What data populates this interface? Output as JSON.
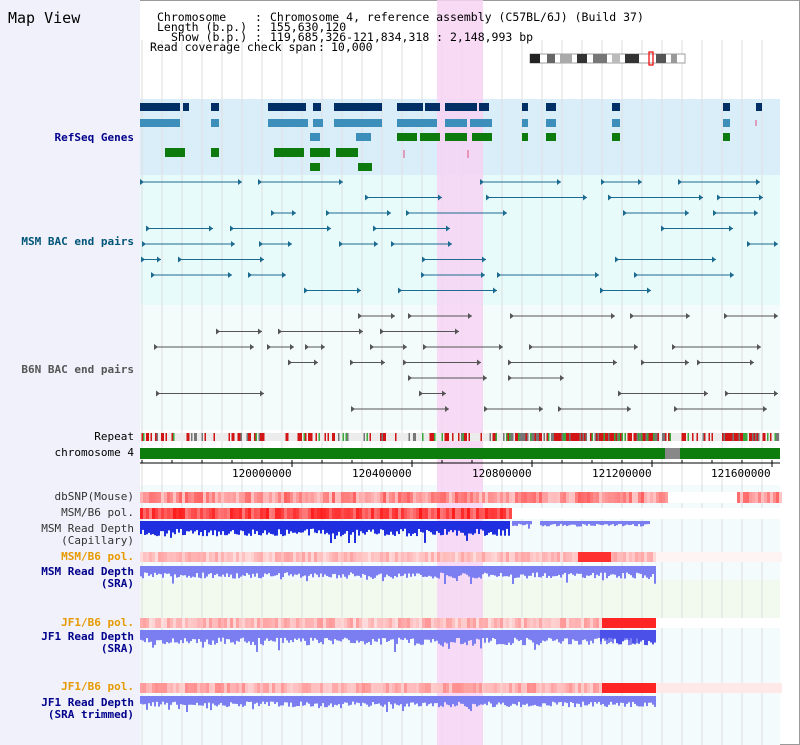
{
  "view_title": "Map View",
  "header": {
    "chromosome_label": "Chromosome",
    "chromosome_value": "Chromosome 4, reference assembly (C57BL/6J) (Build 37)",
    "length_label": "Length (b.p.)",
    "length_value": "155,630,120",
    "show_label": "Show (b.p.)",
    "show_value": "119,685,326-121,834,318 : 2,148,993 bp",
    "coverage_label": "Read coverage check span",
    "coverage_value": "10,000"
  },
  "tracks": {
    "refseq": "RefSeq Genes",
    "msm_bac": "MSM BAC end pairs",
    "b6n_bac": "B6N BAC end pairs",
    "repeat": "Repeat",
    "chromosome": "chromosome 4",
    "dbsnp": "dbSNP(Mouse)",
    "msm_b6_pol": "MSM/B6 pol.",
    "msm_depth_cap_1": "MSM Read Depth",
    "msm_depth_cap_2": "(Capillary)",
    "msm_b6_pol_2": "MSM/B6 pol.",
    "msm_depth_sra_1": "MSM Read Depth",
    "msm_depth_sra_2": "(SRA)",
    "jf1_b6_pol": "JF1/B6 pol.",
    "jf1_depth_sra_1": "JF1 Read Depth",
    "jf1_depth_sra_2": "(SRA)",
    "jf1_b6_pol_2": "JF1/B6 pol.",
    "jf1_depth_trim_1": "JF1 Read Depth",
    "jf1_depth_trim_2": "(SRA trimmed)"
  },
  "axis_ticks": [
    "120000000",
    "120400000",
    "120800000",
    "121200000",
    "121600000"
  ],
  "colors": {
    "refseq_bg": "#daeefa",
    "selection": "#f7d3f3",
    "navy": "#002f66",
    "steel": "#3c8fbb",
    "green": "#0c7a0c",
    "pol": "#f22020",
    "depth_dark": "#1f2fe0",
    "depth_light": "#7a7ef0",
    "label_blue": "#00008b",
    "label_teal": "#005577",
    "label_orange": "#e69a00"
  }
}
